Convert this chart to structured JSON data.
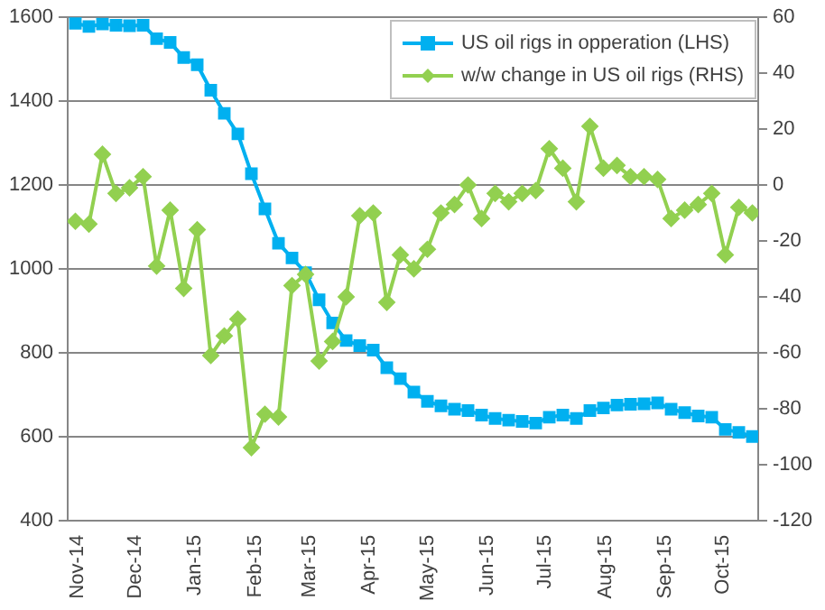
{
  "chart_data": {
    "type": "line",
    "x": [
      "2014-10-31",
      "2014-11-07",
      "2014-11-14",
      "2014-11-21",
      "2014-11-28",
      "2014-12-05",
      "2014-12-12",
      "2014-12-19",
      "2014-12-26",
      "2015-01-02",
      "2015-01-09",
      "2015-01-16",
      "2015-01-23",
      "2015-01-30",
      "2015-02-06",
      "2015-02-13",
      "2015-02-20",
      "2015-02-27",
      "2015-03-06",
      "2015-03-13",
      "2015-03-20",
      "2015-03-27",
      "2015-04-03",
      "2015-04-10",
      "2015-04-17",
      "2015-04-24",
      "2015-05-01",
      "2015-05-08",
      "2015-05-15",
      "2015-05-22",
      "2015-05-29",
      "2015-06-05",
      "2015-06-12",
      "2015-06-19",
      "2015-06-26",
      "2015-07-03",
      "2015-07-10",
      "2015-07-17",
      "2015-07-24",
      "2015-07-31",
      "2015-08-07",
      "2015-08-14",
      "2015-08-21",
      "2015-08-28",
      "2015-09-04",
      "2015-09-11",
      "2015-09-18",
      "2015-09-25",
      "2015-10-02",
      "2015-10-09",
      "2015-10-16"
    ],
    "series": [
      {
        "name": "US oil rigs in opperation (LHS)",
        "color": "#00b0f0",
        "marker": "square",
        "values": [
          1586,
          1578,
          1584,
          1581,
          1580,
          1581,
          1549,
          1540,
          1504,
          1487,
          1426,
          1371,
          1322,
          1227,
          1143,
          1061,
          1026,
          991,
          926,
          871,
          829,
          817,
          806,
          764,
          738,
          706,
          684,
          673,
          665,
          662,
          651,
          643,
          639,
          636,
          632,
          646,
          651,
          643,
          662,
          668,
          675,
          677,
          678,
          680,
          665,
          657,
          649,
          646,
          617,
          610,
          600
        ]
      },
      {
        "name": "w/w change in US oil rigs (RHS)",
        "color": "#92d050",
        "marker": "diamond",
        "axis": "y2",
        "values": [
          -13,
          -14,
          11,
          -3,
          -1,
          3,
          -29,
          -9,
          -37,
          -16,
          -61,
          -54,
          -48,
          -94,
          -82,
          -83,
          -36,
          -32,
          -63,
          -56,
          -40,
          -11,
          -10,
          -42,
          -25,
          -30,
          -23,
          -10,
          -7,
          0,
          -12,
          -3,
          -6,
          -3,
          -2,
          13,
          6,
          -6,
          21,
          6,
          7,
          3,
          3,
          2,
          -12,
          -9,
          -7,
          -3,
          -25,
          -8,
          -10
        ]
      }
    ],
    "xlim": [
      "2014-10-27",
      "2015-10-19"
    ],
    "xticks": [
      {
        "value": "2014-11-01",
        "label": "Nov-14"
      },
      {
        "value": "2014-12-01",
        "label": "Dec-14"
      },
      {
        "value": "2015-01-01",
        "label": "Jan-15"
      },
      {
        "value": "2015-02-01",
        "label": "Feb-15"
      },
      {
        "value": "2015-03-01",
        "label": "Mar-15"
      },
      {
        "value": "2015-04-01",
        "label": "Apr-15"
      },
      {
        "value": "2015-05-01",
        "label": "May-15"
      },
      {
        "value": "2015-06-01",
        "label": "Jun-15"
      },
      {
        "value": "2015-07-01",
        "label": "Jul-15"
      },
      {
        "value": "2015-08-01",
        "label": "Aug-15"
      },
      {
        "value": "2015-09-01",
        "label": "Sep-15"
      },
      {
        "value": "2015-10-01",
        "label": "Oct-15"
      }
    ],
    "ylim": [
      400,
      1600
    ],
    "yticks": [
      400,
      600,
      800,
      1000,
      1200,
      1400,
      1600
    ],
    "y2lim": [
      -120,
      60
    ],
    "y2ticks": [
      -120,
      -100,
      -80,
      -60,
      -40,
      -20,
      0,
      20,
      40,
      60
    ],
    "grid": "y",
    "legend": "top right"
  }
}
